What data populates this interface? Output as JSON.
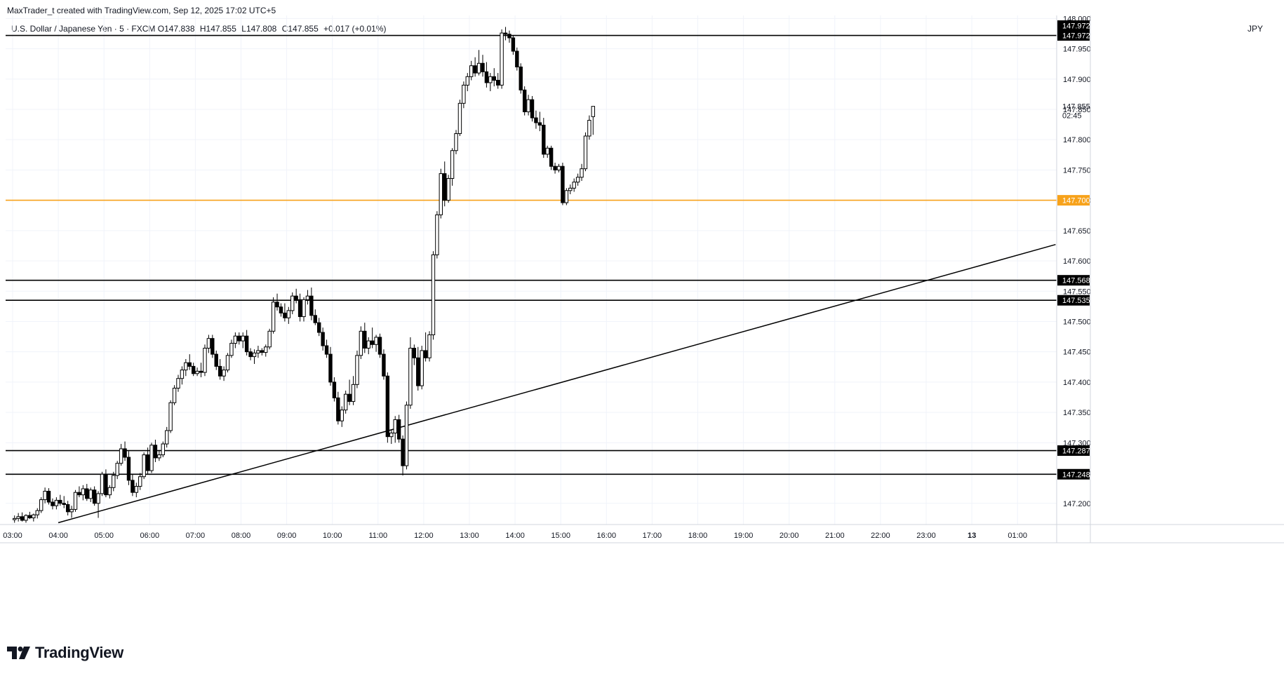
{
  "header": {
    "credit": "MaxTrader_t created with TradingView.com, Sep 12, 2025 17:02 UTC+5"
  },
  "legend": {
    "symbol": "U.S. Dollar / Japanese Yen · 5 · FXCM",
    "o_label": "O",
    "o_value": "147.838",
    "h_label": "H",
    "h_value": "147.855",
    "l_label": "L",
    "l_value": "147.808",
    "c_label": "C",
    "c_value": "147.855",
    "change": "+0.017 (+0.01%)"
  },
  "currency": "JPY",
  "countdown": "02:45",
  "brand": "TradingView",
  "colors": {
    "up_body": "#ffffff",
    "down_body": "#000000",
    "candle_border": "#000000",
    "level_line": "#000000",
    "highlight_level": "#f7a21b",
    "grid": "#f0f3fa",
    "axis_text": "#131722"
  },
  "chart_data": {
    "type": "candlestick",
    "x_ticks": [
      "03:00",
      "04:00",
      "05:00",
      "06:00",
      "07:00",
      "08:00",
      "09:00",
      "10:00",
      "11:00",
      "12:00",
      "13:00",
      "14:00",
      "15:00",
      "16:00",
      "17:00",
      "18:00",
      "19:00",
      "20:00",
      "21:00",
      "22:00",
      "23:00",
      "13",
      "01:00"
    ],
    "y_ticks": [
      "147.200",
      "147.250",
      "147.300",
      "147.350",
      "147.400",
      "147.450",
      "147.500",
      "147.550",
      "147.600",
      "147.650",
      "147.700",
      "147.750",
      "147.800",
      "147.850",
      "147.900",
      "147.950",
      "148.000"
    ],
    "ylim": [
      147.165,
      148.005
    ],
    "horizontal_levels": [
      {
        "value": 147.972,
        "label": "147.972",
        "color": "#000000"
      },
      {
        "value": 147.7,
        "label": "147.700",
        "color": "#f7a21b"
      },
      {
        "value": 147.568,
        "label": "147.568",
        "color": "#000000"
      },
      {
        "value": 147.535,
        "label": "147.535",
        "color": "#000000"
      },
      {
        "value": 147.287,
        "label": "147.287",
        "color": "#000000"
      },
      {
        "value": 147.248,
        "label": "147.248",
        "color": "#000000"
      }
    ],
    "extra_price_labels": [
      {
        "value": 147.972,
        "label": "147.972"
      },
      {
        "value": 147.855,
        "label": "147.855"
      }
    ],
    "trendline": {
      "start": {
        "time": "04:00",
        "value": 147.168
      },
      "end": {
        "time": "01:50",
        "value": 147.627
      }
    },
    "candles": [
      [
        147.173,
        147.18,
        147.168,
        147.175
      ],
      [
        147.175,
        147.184,
        147.17,
        147.178
      ],
      [
        147.178,
        147.185,
        147.17,
        147.172
      ],
      [
        147.172,
        147.182,
        147.168,
        147.18
      ],
      [
        147.18,
        147.186,
        147.174,
        147.176
      ],
      [
        147.176,
        147.183,
        147.17,
        147.181
      ],
      [
        147.181,
        147.192,
        147.175,
        147.188
      ],
      [
        147.188,
        147.21,
        147.184,
        147.206
      ],
      [
        147.206,
        147.226,
        147.2,
        147.22
      ],
      [
        147.22,
        147.225,
        147.198,
        147.202
      ],
      [
        147.202,
        147.208,
        147.19,
        147.196
      ],
      [
        147.196,
        147.21,
        147.19,
        147.205
      ],
      [
        147.205,
        147.214,
        147.196,
        147.2
      ],
      [
        147.2,
        147.212,
        147.192,
        147.198
      ],
      [
        147.198,
        147.204,
        147.18,
        147.186
      ],
      [
        147.186,
        147.196,
        147.176,
        147.19
      ],
      [
        147.19,
        147.222,
        147.186,
        147.218
      ],
      [
        147.218,
        147.228,
        147.21,
        147.214
      ],
      [
        147.214,
        147.23,
        147.205,
        147.224
      ],
      [
        147.224,
        147.232,
        147.204,
        147.208
      ],
      [
        147.208,
        147.226,
        147.202,
        147.222
      ],
      [
        147.222,
        147.228,
        147.196,
        147.2
      ],
      [
        147.2,
        147.22,
        147.176,
        147.216
      ],
      [
        147.216,
        147.252,
        147.212,
        147.248
      ],
      [
        147.248,
        147.256,
        147.21,
        147.214
      ],
      [
        147.214,
        147.23,
        147.208,
        147.226
      ],
      [
        147.226,
        147.252,
        147.22,
        147.246
      ],
      [
        147.246,
        147.27,
        147.24,
        147.266
      ],
      [
        147.266,
        147.298,
        147.262,
        147.29
      ],
      [
        147.29,
        147.302,
        147.27,
        147.276
      ],
      [
        147.276,
        147.286,
        147.23,
        147.238
      ],
      [
        147.238,
        147.248,
        147.212,
        147.218
      ],
      [
        147.218,
        147.234,
        147.21,
        147.228
      ],
      [
        147.228,
        147.25,
        147.222,
        147.244
      ],
      [
        147.244,
        147.284,
        147.24,
        147.28
      ],
      [
        147.28,
        147.292,
        147.248,
        147.254
      ],
      [
        147.254,
        147.3,
        147.25,
        147.296
      ],
      [
        147.296,
        147.305,
        147.268,
        147.275
      ],
      [
        147.275,
        147.288,
        147.27,
        147.28
      ],
      [
        147.28,
        147.302,
        147.276,
        147.298
      ],
      [
        147.298,
        147.326,
        147.292,
        147.32
      ],
      [
        147.32,
        147.37,
        147.316,
        147.366
      ],
      [
        147.366,
        147.395,
        147.362,
        147.39
      ],
      [
        147.39,
        147.412,
        147.384,
        147.406
      ],
      [
        147.406,
        147.426,
        147.396,
        147.42
      ],
      [
        147.42,
        147.438,
        147.41,
        147.432
      ],
      [
        147.432,
        147.446,
        147.42,
        147.426
      ],
      [
        147.426,
        147.432,
        147.41,
        147.414
      ],
      [
        147.414,
        147.424,
        147.41,
        147.418
      ],
      [
        147.418,
        147.432,
        147.408,
        147.416
      ],
      [
        147.416,
        147.462,
        147.41,
        147.456
      ],
      [
        147.456,
        147.478,
        147.448,
        147.472
      ],
      [
        147.472,
        147.478,
        147.44,
        147.446
      ],
      [
        147.446,
        147.452,
        147.42,
        147.426
      ],
      [
        147.426,
        147.438,
        147.404,
        147.41
      ],
      [
        147.41,
        147.426,
        147.402,
        147.42
      ],
      [
        147.42,
        147.448,
        147.416,
        147.444
      ],
      [
        147.444,
        147.47,
        147.44,
        147.464
      ],
      [
        147.464,
        147.482,
        147.456,
        147.476
      ],
      [
        147.476,
        147.482,
        147.462,
        147.468
      ],
      [
        147.468,
        147.482,
        147.456,
        147.476
      ],
      [
        147.476,
        147.486,
        147.444,
        147.45
      ],
      [
        147.45,
        147.456,
        147.436,
        147.442
      ],
      [
        147.442,
        147.454,
        147.43,
        147.448
      ],
      [
        147.448,
        147.46,
        147.44,
        147.452
      ],
      [
        147.452,
        147.456,
        147.444,
        147.449
      ],
      [
        147.449,
        147.462,
        147.442,
        147.458
      ],
      [
        147.458,
        147.488,
        147.454,
        147.484
      ],
      [
        147.484,
        147.54,
        147.48,
        147.532
      ],
      [
        147.532,
        147.546,
        147.518,
        147.524
      ],
      [
        147.524,
        147.53,
        147.508,
        147.514
      ],
      [
        147.514,
        147.53,
        147.5,
        147.506
      ],
      [
        147.506,
        147.524,
        147.496,
        147.518
      ],
      [
        147.518,
        147.548,
        147.512,
        147.542
      ],
      [
        147.542,
        147.554,
        147.53,
        147.536
      ],
      [
        147.536,
        147.546,
        147.5,
        147.508
      ],
      [
        147.508,
        147.54,
        147.5,
        147.536
      ],
      [
        147.536,
        147.552,
        147.528,
        147.542
      ],
      [
        147.542,
        147.556,
        147.502,
        147.51
      ],
      [
        147.51,
        147.52,
        147.494,
        147.498
      ],
      [
        147.498,
        147.506,
        147.476,
        147.482
      ],
      [
        147.482,
        147.49,
        147.452,
        147.46
      ],
      [
        147.46,
        147.47,
        147.44,
        147.446
      ],
      [
        147.446,
        147.458,
        147.394,
        147.4
      ],
      [
        147.4,
        147.408,
        147.368,
        147.374
      ],
      [
        147.374,
        147.384,
        147.33,
        147.336
      ],
      [
        147.336,
        147.36,
        147.326,
        147.354
      ],
      [
        147.354,
        147.386,
        147.348,
        147.38
      ],
      [
        147.38,
        147.404,
        147.362,
        147.368
      ],
      [
        147.368,
        147.41,
        147.362,
        147.396
      ],
      [
        147.396,
        147.452,
        147.39,
        147.444
      ],
      [
        147.444,
        147.492,
        147.438,
        147.484
      ],
      [
        147.484,
        147.498,
        147.448,
        147.456
      ],
      [
        147.456,
        147.474,
        147.446,
        147.468
      ],
      [
        147.468,
        147.49,
        147.456,
        147.462
      ],
      [
        147.462,
        147.478,
        147.45,
        147.474
      ],
      [
        147.474,
        147.48,
        147.44,
        147.446
      ],
      [
        147.446,
        147.454,
        147.404,
        147.41
      ],
      [
        147.41,
        147.416,
        147.3,
        147.31
      ],
      [
        147.31,
        147.322,
        147.298,
        147.316
      ],
      [
        147.316,
        147.344,
        147.3,
        147.338
      ],
      [
        147.338,
        147.346,
        147.3,
        147.306
      ],
      [
        147.306,
        147.312,
        147.246,
        147.262
      ],
      [
        147.262,
        147.368,
        147.256,
        147.362
      ],
      [
        147.362,
        147.474,
        147.356,
        147.456
      ],
      [
        147.456,
        147.462,
        147.428,
        147.44
      ],
      [
        147.44,
        147.458,
        147.386,
        147.394
      ],
      [
        147.394,
        147.46,
        147.388,
        147.452
      ],
      [
        147.452,
        147.482,
        147.434,
        147.44
      ],
      [
        147.44,
        147.484,
        147.434,
        147.478
      ],
      [
        147.478,
        147.616,
        147.47,
        147.61
      ],
      [
        147.61,
        147.682,
        147.604,
        147.676
      ],
      [
        147.676,
        147.752,
        147.67,
        147.744
      ],
      [
        147.744,
        147.764,
        147.69,
        147.7
      ],
      [
        147.7,
        147.742,
        147.696,
        147.736
      ],
      [
        147.736,
        147.786,
        147.724,
        147.782
      ],
      [
        147.782,
        147.816,
        147.776,
        147.81
      ],
      [
        147.81,
        147.866,
        147.806,
        147.86
      ],
      [
        147.86,
        147.896,
        147.852,
        147.89
      ],
      [
        147.89,
        147.91,
        147.88,
        147.904
      ],
      [
        147.904,
        147.93,
        147.898,
        147.922
      ],
      [
        147.922,
        147.936,
        147.904,
        147.91
      ],
      [
        147.91,
        147.948,
        147.906,
        147.926
      ],
      [
        147.926,
        147.94,
        147.904,
        147.912
      ],
      [
        147.912,
        147.928,
        147.886,
        147.894
      ],
      [
        147.894,
        147.91,
        147.88,
        147.904
      ],
      [
        147.904,
        147.918,
        147.888,
        147.898
      ],
      [
        147.898,
        147.91,
        147.884,
        147.89
      ],
      [
        147.89,
        147.982,
        147.884,
        147.976
      ],
      [
        147.976,
        147.986,
        147.964,
        147.974
      ],
      [
        147.974,
        147.98,
        147.96,
        147.968
      ],
      [
        147.968,
        147.972,
        147.94,
        147.946
      ],
      [
        147.946,
        147.952,
        147.914,
        147.92
      ],
      [
        147.92,
        147.926,
        147.876,
        147.882
      ],
      [
        147.882,
        147.888,
        147.84,
        147.846
      ],
      [
        147.846,
        147.874,
        147.84,
        147.866
      ],
      [
        147.866,
        147.872,
        147.83,
        147.836
      ],
      [
        147.836,
        147.848,
        147.818,
        147.828
      ],
      [
        147.828,
        147.846,
        147.814,
        147.824
      ],
      [
        147.824,
        147.836,
        147.77,
        147.776
      ],
      [
        147.776,
        147.79,
        147.77,
        147.786
      ],
      [
        147.786,
        147.79,
        147.75,
        147.756
      ],
      [
        147.756,
        147.762,
        147.744,
        147.75
      ],
      [
        147.75,
        147.76,
        147.746,
        147.756
      ],
      [
        147.756,
        147.762,
        147.692,
        147.696
      ],
      [
        147.696,
        147.72,
        147.692,
        147.716
      ],
      [
        147.716,
        147.726,
        147.71,
        147.72
      ],
      [
        147.72,
        147.736,
        147.714,
        147.73
      ],
      [
        147.73,
        147.744,
        147.724,
        147.738
      ],
      [
        147.738,
        147.76,
        147.732,
        147.752
      ],
      [
        147.752,
        147.812,
        147.748,
        147.806
      ],
      [
        147.806,
        147.84,
        147.8,
        147.832
      ],
      [
        147.838,
        147.855,
        147.808,
        147.855
      ]
    ]
  }
}
